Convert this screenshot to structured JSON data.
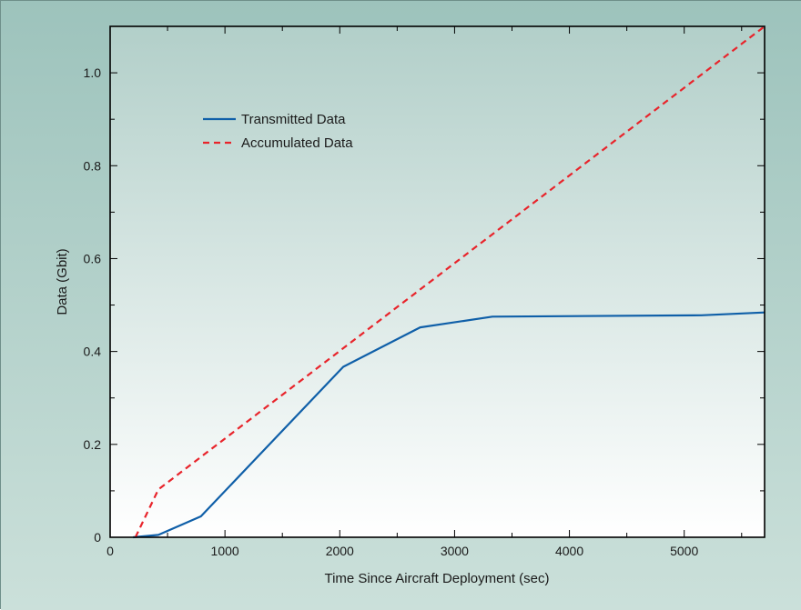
{
  "chart_data": {
    "type": "line",
    "xlabel": "Time Since Aircraft Deployment (sec)",
    "ylabel": "Data (Gbit)",
    "xlim": [
      0,
      5700
    ],
    "ylim": [
      0,
      1.1
    ],
    "x_ticks": [
      0,
      1000,
      2000,
      3000,
      4000,
      5000
    ],
    "x_tick_labels": [
      "0",
      "1000",
      "2000",
      "3000",
      "4000",
      "5000"
    ],
    "y_ticks": [
      0,
      0.2,
      0.4,
      0.6,
      0.8,
      1.0
    ],
    "y_tick_labels": [
      "0",
      "0.2",
      "0.4",
      "0.6",
      "0.8",
      "1.0"
    ],
    "grid": false,
    "legend_position": "upper-left",
    "series": [
      {
        "name": "Transmitted Data",
        "color": "#0f5fa8",
        "line_style": "solid",
        "points": [
          [
            200,
            0
          ],
          [
            420,
            0.005
          ],
          [
            790,
            0.045
          ],
          [
            2030,
            0.367
          ],
          [
            2700,
            0.452
          ],
          [
            3330,
            0.475
          ],
          [
            5150,
            0.478
          ],
          [
            5700,
            0.484
          ]
        ]
      },
      {
        "name": "Accumulated Data",
        "color": "#e8242b",
        "line_style": "dashed",
        "points": [
          [
            220,
            0
          ],
          [
            420,
            0.103
          ],
          [
            5700,
            1.1
          ]
        ]
      }
    ]
  },
  "colors": {
    "background_top": "#9dc3bc",
    "background_bottom": "#cbe0da",
    "plot_top": "#b2cfc9",
    "plot_bottom": "#ffffff",
    "axis": "#000000"
  }
}
